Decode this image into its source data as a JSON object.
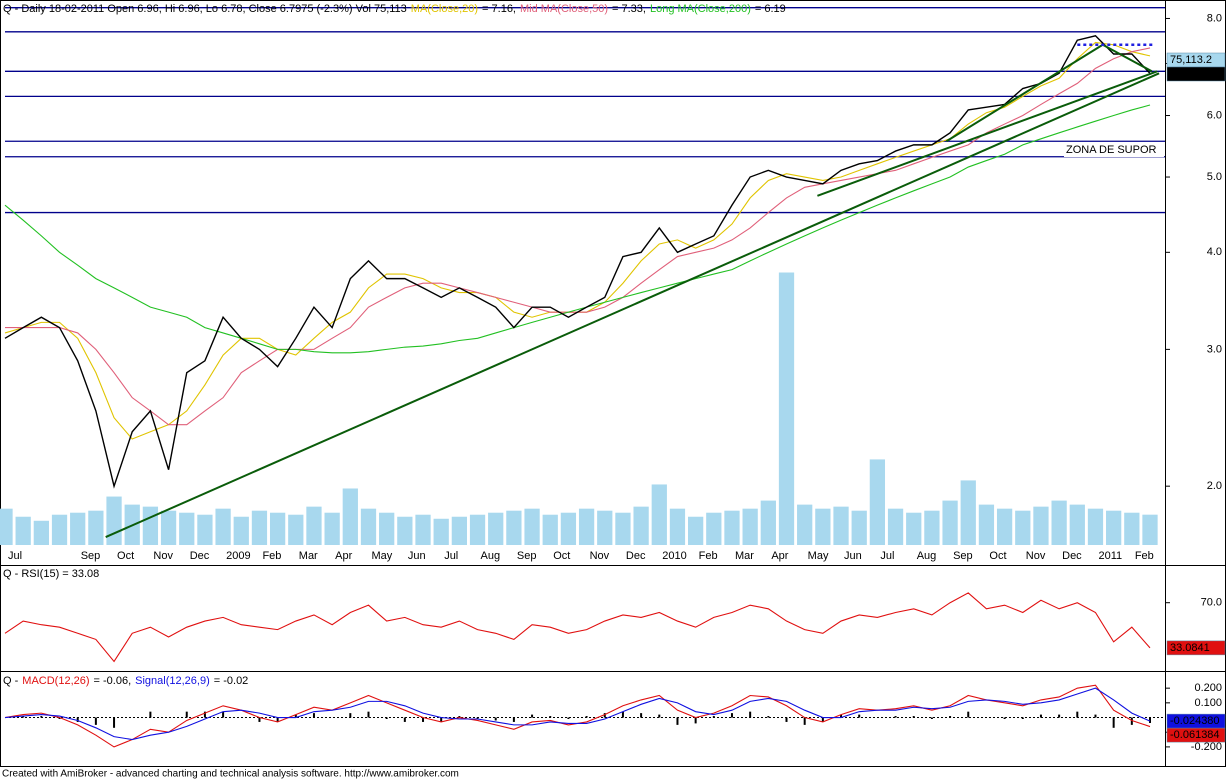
{
  "chart_data": [
    {
      "type": "line",
      "header": "Q - Daily 18-02-2011 Open 6.96, Hi 6.96, Lo 6.78, Close 6.7975 (-2.3%) Vol 75,113",
      "log_scale": true,
      "categories": [
        "Jul",
        null,
        null,
        null,
        "Sep",
        null,
        "Oct",
        null,
        "Nov",
        null,
        "Dec",
        null,
        "2009",
        null,
        "Feb",
        null,
        "Mar",
        null,
        "Apr",
        null,
        "May",
        null,
        "Jun",
        null,
        "Jul",
        null,
        "Aug",
        null,
        "Sep",
        null,
        "Oct",
        null,
        "Nov",
        null,
        "Dec",
        null,
        "2010",
        null,
        "Feb",
        null,
        "Mar",
        null,
        "Apr",
        null,
        "May",
        null,
        "Jun",
        null,
        "Jul",
        null,
        "Aug",
        null,
        "Sep",
        null,
        "Oct",
        null,
        "Nov",
        null,
        "Dec",
        null,
        "2011",
        null,
        "Feb",
        null
      ],
      "ylim": [
        1.68,
        8.45
      ],
      "yticks": [
        {
          "value": 2,
          "label": "2.0"
        },
        {
          "value": 3,
          "label": "3.0"
        },
        {
          "value": 4,
          "label": "4.0"
        },
        {
          "value": 5,
          "label": "5.0"
        },
        {
          "value": 6,
          "label": "6.0"
        },
        {
          "value": 7,
          "label": "7.0"
        },
        {
          "value": 8,
          "label": "8.0"
        }
      ],
      "volume": {
        "color": "#a8d8ee",
        "lim": [
          0,
          1350000
        ],
        "last_label": "75,113.2",
        "values": [
          90000,
          70000,
          60000,
          75000,
          80000,
          85000,
          120000,
          100000,
          95000,
          85000,
          80000,
          75000,
          90000,
          70000,
          85000,
          80000,
          75000,
          95000,
          80000,
          140000,
          90000,
          80000,
          70000,
          75000,
          65000,
          70000,
          75000,
          80000,
          85000,
          90000,
          75000,
          80000,
          90000,
          85000,
          80000,
          95000,
          150000,
          90000,
          70000,
          80000,
          85000,
          90000,
          110000,
          675000,
          100000,
          90000,
          95000,
          85000,
          212000,
          90000,
          80000,
          85000,
          110000,
          160000,
          100000,
          90000,
          85000,
          95000,
          110000,
          100000,
          90000,
          85000,
          80000,
          75113.2
        ]
      },
      "hlines": {
        "color": "#00008b",
        "values": [
          8.26,
          7.69,
          6.84,
          6.35,
          5.56,
          5.31,
          4.5
        ]
      },
      "trendlines": [
        {
          "color": "#0a5c0a",
          "points": [
            [
              5.54,
              1.72
            ],
            [
              63.5,
              6.8
            ]
          ]
        },
        {
          "color": "#0a5c0a",
          "points": [
            [
              44.7,
              4.73
            ],
            [
              63.4,
              6.84
            ]
          ]
        },
        {
          "color": "#0a5c0a",
          "points": [
            [
              51.8,
              5.56
            ],
            [
              60.4,
              7.4
            ]
          ]
        },
        {
          "color": "#0a5c0a",
          "points": [
            [
              60.4,
              7.4
            ],
            [
              63.1,
              6.84
            ]
          ]
        },
        {
          "color": "#2020e0",
          "dashed": true,
          "points": [
            [
              59,
              7.4
            ],
            [
              63.2,
              7.4
            ]
          ]
        }
      ],
      "annotation": {
        "text": "ZONA DE SUPOR",
        "color": "#2020c0"
      },
      "series": [
        {
          "color": "#e0c400",
          "name": "MA(Close,20)",
          "legend_value": "= 7.16,",
          "values": [
            3.15,
            3.2,
            3.25,
            3.25,
            3.1,
            2.8,
            2.45,
            2.3,
            2.35,
            2.4,
            2.5,
            2.7,
            2.95,
            3.1,
            3.1,
            3.0,
            2.95,
            3.1,
            3.25,
            3.35,
            3.6,
            3.75,
            3.75,
            3.7,
            3.6,
            3.55,
            3.55,
            3.5,
            3.35,
            3.3,
            3.35,
            3.35,
            3.35,
            3.45,
            3.65,
            3.9,
            4.1,
            4.15,
            4.05,
            4.15,
            4.35,
            4.7,
            4.95,
            5.05,
            5.0,
            4.95,
            5.0,
            5.1,
            5.2,
            5.3,
            5.4,
            5.5,
            5.6,
            5.85,
            6.05,
            6.15,
            6.35,
            6.55,
            6.7,
            7.1,
            7.45,
            7.4,
            7.25,
            7.16
          ]
        },
        {
          "color": "#e0607a",
          "name": "Mid MA(Close,50)",
          "legend_value": "= 7.33,",
          "values": [
            3.2,
            3.2,
            3.2,
            3.2,
            3.15,
            3.0,
            2.8,
            2.6,
            2.5,
            2.4,
            2.4,
            2.5,
            2.6,
            2.8,
            2.9,
            3.0,
            3.0,
            3.0,
            3.1,
            3.2,
            3.4,
            3.5,
            3.6,
            3.65,
            3.65,
            3.6,
            3.55,
            3.5,
            3.45,
            3.4,
            3.35,
            3.35,
            3.35,
            3.4,
            3.5,
            3.65,
            3.8,
            3.95,
            4.0,
            4.05,
            4.15,
            4.3,
            4.5,
            4.7,
            4.85,
            4.9,
            4.95,
            5.0,
            5.05,
            5.1,
            5.2,
            5.3,
            5.4,
            5.5,
            5.7,
            5.85,
            6.0,
            6.2,
            6.4,
            6.6,
            6.9,
            7.1,
            7.25,
            7.33
          ]
        },
        {
          "color": "#22c022",
          "name": "Long MA(Close,200)",
          "legend_value": "= 6.19",
          "values": [
            4.6,
            4.4,
            4.2,
            4.0,
            3.85,
            3.7,
            3.6,
            3.5,
            3.4,
            3.35,
            3.3,
            3.2,
            3.15,
            3.1,
            3.05,
            3.0,
            3.0,
            2.98,
            2.97,
            2.97,
            2.98,
            3.0,
            3.02,
            3.03,
            3.05,
            3.08,
            3.1,
            3.15,
            3.2,
            3.25,
            3.3,
            3.35,
            3.4,
            3.45,
            3.5,
            3.55,
            3.6,
            3.65,
            3.7,
            3.75,
            3.8,
            3.9,
            4.0,
            4.1,
            4.2,
            4.3,
            4.4,
            4.5,
            4.6,
            4.7,
            4.8,
            4.9,
            5.0,
            5.15,
            5.25,
            5.35,
            5.5,
            5.6,
            5.7,
            5.8,
            5.9,
            6.0,
            6.1,
            6.19
          ]
        },
        {
          "color": "#000000",
          "show_last": true,
          "label_text_color": "#ffffff",
          "values": [
            3.1,
            3.2,
            3.3,
            3.2,
            2.9,
            2.5,
            2.0,
            2.35,
            2.5,
            2.1,
            2.8,
            2.9,
            3.3,
            3.1,
            3.0,
            2.85,
            3.1,
            3.4,
            3.2,
            3.7,
            3.9,
            3.7,
            3.7,
            3.6,
            3.5,
            3.6,
            3.5,
            3.4,
            3.2,
            3.4,
            3.4,
            3.3,
            3.4,
            3.5,
            3.95,
            4.0,
            4.3,
            4.0,
            4.1,
            4.2,
            4.6,
            5.0,
            5.1,
            5.0,
            4.95,
            4.9,
            5.1,
            5.2,
            5.25,
            5.4,
            5.5,
            5.5,
            5.7,
            6.1,
            6.15,
            6.2,
            6.5,
            6.6,
            6.8,
            7.5,
            7.6,
            7.2,
            7.2,
            6.7975
          ]
        }
      ]
    },
    {
      "type": "line",
      "title": "Q - RSI(15) = 33.08",
      "ylim": [
        15,
        100
      ],
      "yticks": [
        {
          "value": 70,
          "label": "70.0"
        }
      ],
      "series": [
        {
          "color": "#e01010",
          "show_last": true,
          "label_text_color": "#000000",
          "values": [
            45,
            55,
            52,
            50,
            45,
            40,
            22,
            45,
            50,
            42,
            50,
            55,
            58,
            52,
            50,
            48,
            55,
            60,
            52,
            62,
            68,
            55,
            58,
            52,
            50,
            55,
            48,
            45,
            40,
            52,
            50,
            45,
            48,
            55,
            60,
            58,
            62,
            55,
            50,
            58,
            62,
            68,
            65,
            55,
            48,
            45,
            55,
            60,
            58,
            62,
            65,
            60,
            70,
            78,
            65,
            68,
            62,
            72,
            65,
            70,
            62,
            38,
            50,
            33.0841
          ]
        }
      ]
    },
    {
      "type": "line",
      "header": "Q -",
      "ylim": [
        -0.33,
        0.31
      ],
      "yticks": [
        {
          "value": 0.2,
          "label": "0.200"
        },
        {
          "value": 0.1,
          "label": "0.100"
        },
        {
          "value": -0.1,
          "label": "-0.100"
        },
        {
          "value": -0.2,
          "label": "-0.200"
        }
      ],
      "histogram": {
        "color": "#000000",
        "values": [
          0,
          0.01,
          0.01,
          -0.01,
          -0.03,
          -0.05,
          -0.07,
          0,
          0.04,
          0,
          0.04,
          0.04,
          0.04,
          0,
          -0.03,
          -0.03,
          0.02,
          0.03,
          0,
          0.03,
          0.04,
          -0.01,
          -0.03,
          -0.03,
          -0.03,
          0.01,
          -0.01,
          -0.02,
          -0.03,
          0.02,
          0.01,
          -0.01,
          0.01,
          0.03,
          0.04,
          0.03,
          0.02,
          -0.05,
          -0.04,
          0.01,
          0.03,
          0.04,
          0.01,
          -0.03,
          -0.05,
          -0.03,
          0.02,
          0.02,
          0,
          0.01,
          0.01,
          -0.01,
          0.01,
          0.04,
          0,
          -0.01,
          -0.01,
          0.02,
          0.02,
          0.04,
          0.02,
          -0.07,
          -0.05,
          -0.037004
        ]
      },
      "series": [
        {
          "color": "#e01010",
          "name": "MACD(12,26)",
          "legend_value": "= -0.06,",
          "show_last": true,
          "label_text_color": "#000000",
          "values": [
            0.0,
            0.02,
            0.03,
            0.0,
            -0.05,
            -0.12,
            -0.2,
            -0.15,
            -0.08,
            -0.1,
            -0.02,
            0.03,
            0.08,
            0.05,
            0.0,
            -0.03,
            0.02,
            0.07,
            0.05,
            0.1,
            0.15,
            0.1,
            0.05,
            0.0,
            -0.03,
            0.0,
            -0.02,
            -0.05,
            -0.08,
            -0.03,
            -0.02,
            -0.05,
            -0.03,
            0.02,
            0.08,
            0.12,
            0.15,
            0.05,
            0.0,
            0.03,
            0.08,
            0.15,
            0.14,
            0.08,
            0.0,
            -0.03,
            0.02,
            0.06,
            0.05,
            0.06,
            0.08,
            0.05,
            0.08,
            0.15,
            0.12,
            0.1,
            0.08,
            0.12,
            0.14,
            0.2,
            0.22,
            0.05,
            -0.02,
            -0.061384
          ]
        },
        {
          "color": "#1010e0",
          "name": "Signal(12,26,9)",
          "legend_value": "= -0.02",
          "show_last": true,
          "label_text_color": "#ffffff",
          "last_label": "-0.024380",
          "values": [
            0.0,
            0.01,
            0.02,
            0.01,
            -0.02,
            -0.07,
            -0.13,
            -0.15,
            -0.12,
            -0.1,
            -0.06,
            -0.01,
            0.04,
            0.05,
            0.03,
            0.0,
            0.0,
            0.04,
            0.05,
            0.07,
            0.11,
            0.11,
            0.08,
            0.03,
            0.0,
            -0.01,
            -0.01,
            -0.03,
            -0.05,
            -0.05,
            -0.03,
            -0.04,
            -0.04,
            -0.01,
            0.04,
            0.09,
            0.13,
            0.1,
            0.04,
            0.02,
            0.05,
            0.11,
            0.13,
            0.11,
            0.05,
            0.0,
            0.0,
            0.04,
            0.05,
            0.05,
            0.07,
            0.06,
            0.07,
            0.11,
            0.12,
            0.11,
            0.09,
            0.1,
            0.12,
            0.16,
            0.2,
            0.12,
            0.03,
            -0.02438
          ]
        }
      ]
    }
  ],
  "footer": "Created with AmiBroker - advanced charting and technical analysis software. http://www.amibroker.com"
}
